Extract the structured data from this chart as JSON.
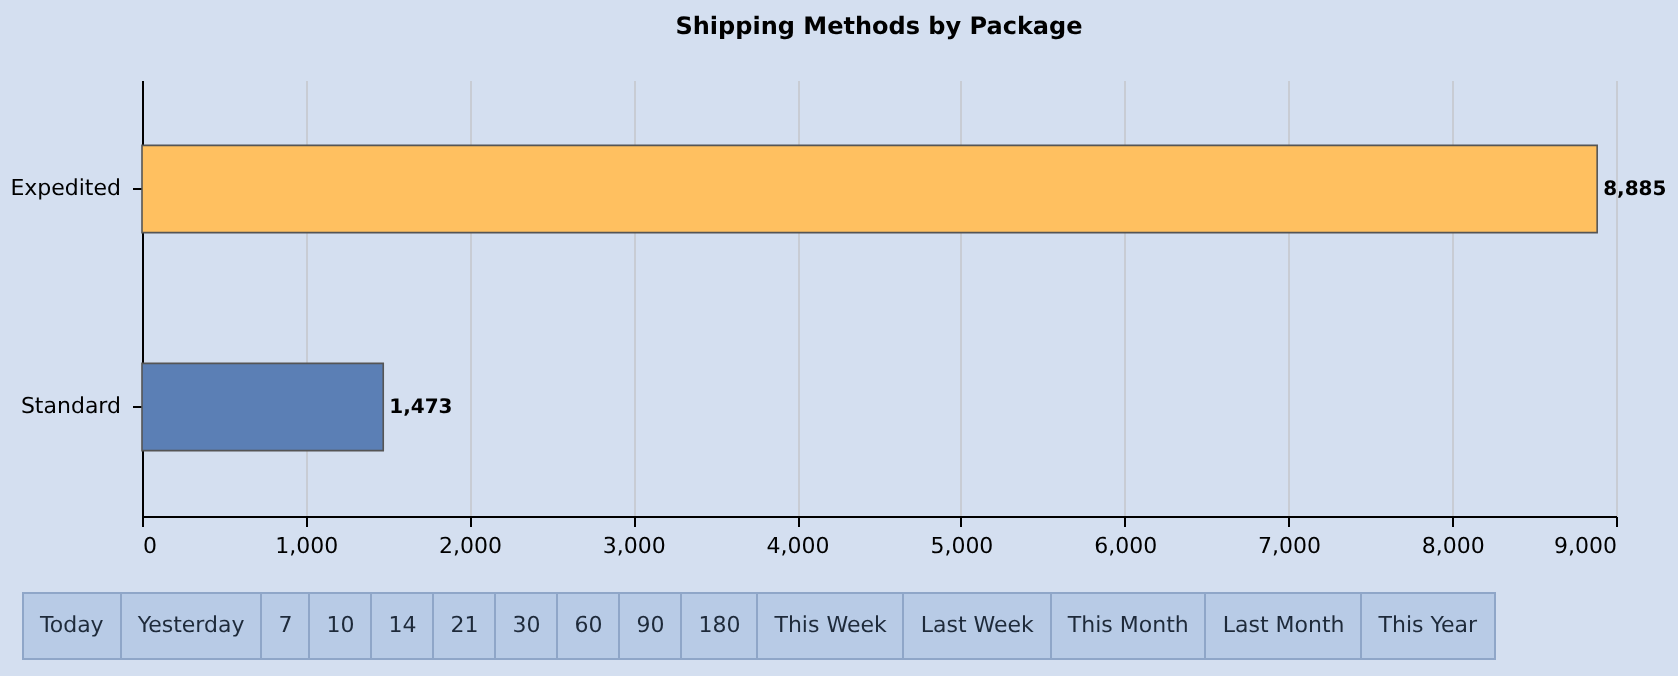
{
  "chart_data": [
    {
      "type": "bar",
      "title": "Shipping Methods by Package",
      "orientation": "horizontal",
      "categories": [
        "Expedited",
        "Standard"
      ],
      "values": [
        8885,
        1473
      ],
      "colors": [
        "#ffc060",
        "#5b7fb5"
      ],
      "value_labels": [
        "8,885",
        "1,473"
      ],
      "xlim": [
        0,
        9000
      ],
      "xticks": [
        0,
        {
          "value": 1000,
          "label": "1,000"
        },
        {
          "value": 2000,
          "label": "2,000"
        },
        {
          "value": 3000,
          "label": "3,000"
        },
        {
          "value": 4000,
          "label": "4,000"
        },
        {
          "value": 5000,
          "label": "5,000"
        },
        {
          "value": 6000,
          "label": "6,000"
        },
        {
          "value": 7000,
          "label": "7,000"
        },
        {
          "value": 8000,
          "label": "8,000"
        },
        {
          "value": 9000,
          "label": "9,000"
        }
      ],
      "grid": "x",
      "legend": false
    },
    {
      "type": "other",
      "annotations": [
        "Today",
        "Yesterday",
        "7",
        "10",
        "14",
        "21",
        "30",
        "60",
        "90",
        "180",
        "This Week",
        "Last Week",
        "This Month",
        "Last Month",
        "This Year"
      ]
    }
  ]
}
